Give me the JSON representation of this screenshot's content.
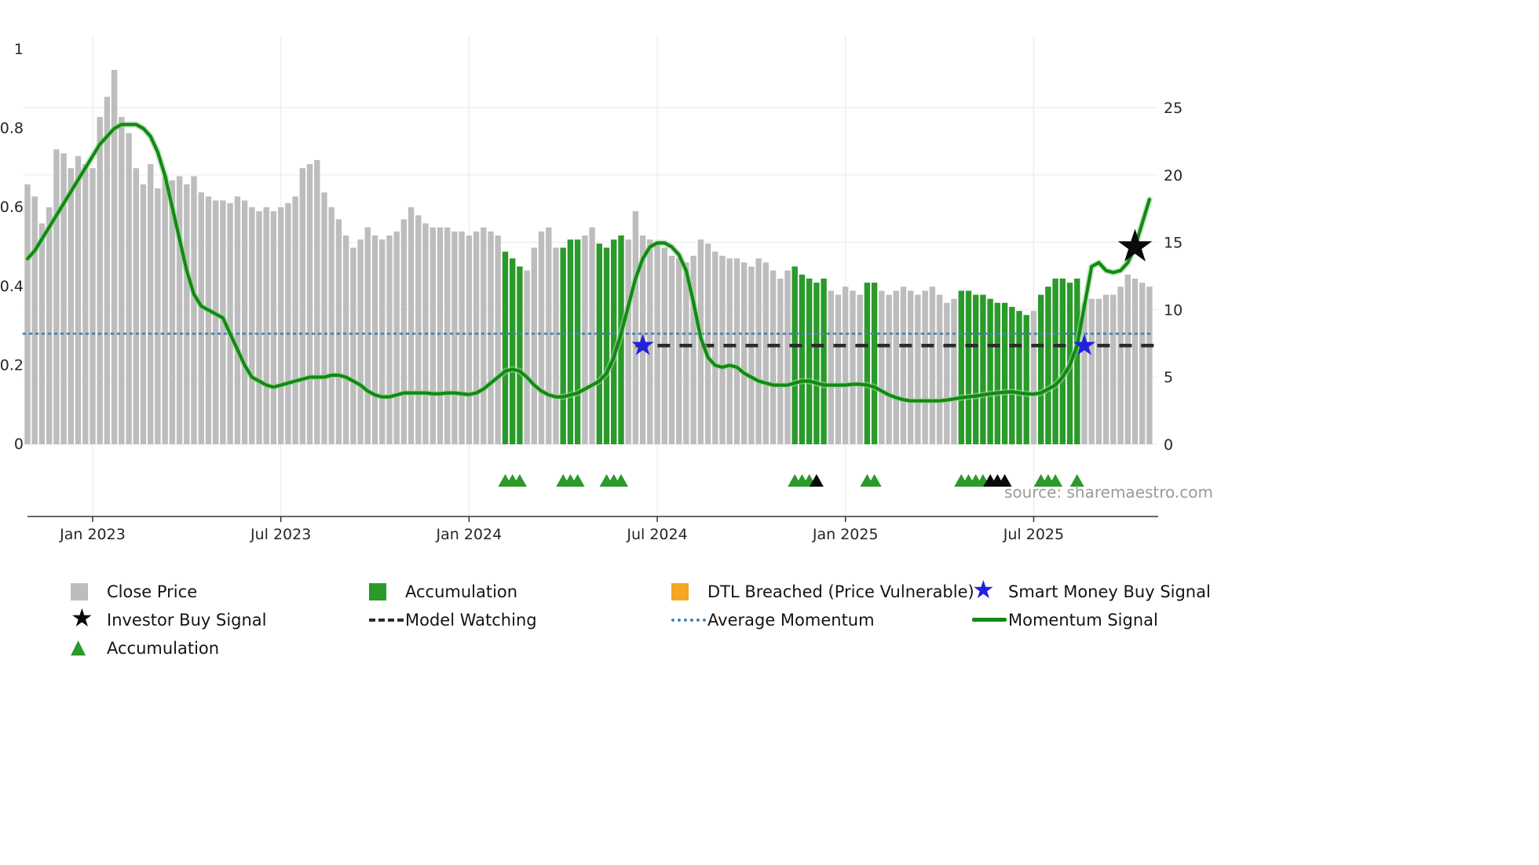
{
  "source_text": "source: sharemaestro.com",
  "icons": {
    "star": "★",
    "triangle": "▲"
  },
  "colors": {
    "close_price_gray": "#bdbdbd",
    "accumulation_green": "#2a9a2a",
    "momentum_green": "#128a12",
    "momentum_halo": "#9fd49f",
    "average_momentum_blue": "#4682B4",
    "model_watching_black": "#2b2b2b",
    "smart_money_blue": "#2121dd",
    "investor_black": "#0a0a0a",
    "dtl_orange": "#F5A623",
    "grid": "#ececec",
    "axis_line": "#333333"
  },
  "legend": {
    "items": [
      {
        "label": "Close Price",
        "swatch": "gray-square"
      },
      {
        "label": "Accumulation",
        "swatch": "green-square"
      },
      {
        "label": "DTL Breached (Price Vulnerable)",
        "swatch": "orange-square"
      },
      {
        "label": "Smart Money Buy Signal",
        "swatch": "blue-star"
      },
      {
        "label": "Investor Buy Signal",
        "swatch": "black-star"
      },
      {
        "label": "Model Watching",
        "swatch": "black-dashed-line"
      },
      {
        "label": "Average Momentum",
        "swatch": "blue-dotted-line"
      },
      {
        "label": "Momentum Signal",
        "swatch": "green-line"
      },
      {
        "label": "Accumulation",
        "swatch": "green-triangle"
      }
    ]
  },
  "chart_data": {
    "type": "combo_bar_line",
    "title": "",
    "left_axis": {
      "label": "",
      "ticks": [
        0,
        0.2,
        0.4,
        0.6,
        0.8,
        1
      ],
      "range": [
        0,
        1.05
      ]
    },
    "right_axis": {
      "label": "",
      "ticks": [
        0,
        5,
        10,
        15,
        20,
        25
      ],
      "range": [
        0,
        28
      ]
    },
    "x_ticks": [
      {
        "label": "Jan 2023",
        "index": 9
      },
      {
        "label": "Jul 2023",
        "index": 35
      },
      {
        "label": "Jan 2024",
        "index": 61
      },
      {
        "label": "Jul 2024",
        "index": 87
      },
      {
        "label": "Jan 2025",
        "index": 113
      },
      {
        "label": "Jul 2025",
        "index": 139
      }
    ],
    "bars": {
      "name": "Close Price",
      "axis": "right",
      "values": [
        19.3,
        18.4,
        16.4,
        17.6,
        21.9,
        21.6,
        20.5,
        21.4,
        20.8,
        20.5,
        24.3,
        25.8,
        27.8,
        24.3,
        23.1,
        20.5,
        19.3,
        20.8,
        19.0,
        19.9,
        19.6,
        19.9,
        19.3,
        19.9,
        18.7,
        18.4,
        18.1,
        18.1,
        17.9,
        18.4,
        18.1,
        17.6,
        17.3,
        17.6,
        17.3,
        17.6,
        17.9,
        18.4,
        20.5,
        20.8,
        21.1,
        18.7,
        17.6,
        16.7,
        15.5,
        14.6,
        15.2,
        16.1,
        15.5,
        15.2,
        15.5,
        15.8,
        16.7,
        17.6,
        17.0,
        16.4,
        16.1,
        16.1,
        16.1,
        15.8,
        15.8,
        15.5,
        15.8,
        16.1,
        15.8,
        15.5,
        14.3,
        13.8,
        13.2,
        12.9,
        14.6,
        15.8,
        16.1,
        14.6,
        14.6,
        15.2,
        15.2,
        15.5,
        16.1,
        14.9,
        14.6,
        15.2,
        15.5,
        15.2,
        17.3,
        15.5,
        15.2,
        14.9,
        14.6,
        14.0,
        13.8,
        13.5,
        14.0,
        15.2,
        14.9,
        14.3,
        14.0,
        13.8,
        13.8,
        13.5,
        13.2,
        13.8,
        13.5,
        12.9,
        12.3,
        12.9,
        13.2,
        12.6,
        12.3,
        12.0,
        12.3,
        11.4,
        11.1,
        11.7,
        11.4,
        11.1,
        12.0,
        12.0,
        11.4,
        11.1,
        11.4,
        11.7,
        11.4,
        11.1,
        11.4,
        11.7,
        11.1,
        10.5,
        10.8,
        11.4,
        11.4,
        11.1,
        11.1,
        10.8,
        10.5,
        10.5,
        10.2,
        9.9,
        9.6,
        9.9,
        11.1,
        11.7,
        12.3,
        12.3,
        12.0,
        12.3,
        10.5,
        10.8,
        10.8,
        11.1,
        11.1,
        11.7,
        12.6,
        12.3,
        12.0,
        11.7
      ],
      "accumulation_indices": [
        66,
        67,
        68,
        74,
        75,
        76,
        79,
        80,
        81,
        82,
        106,
        107,
        108,
        109,
        110,
        116,
        117,
        129,
        130,
        131,
        132,
        133,
        134,
        135,
        136,
        137,
        138,
        140,
        141,
        142,
        143,
        144,
        145
      ]
    },
    "momentum": {
      "name": "Momentum Signal",
      "axis": "left",
      "values": [
        0.47,
        0.49,
        0.52,
        0.55,
        0.58,
        0.61,
        0.64,
        0.67,
        0.7,
        0.73,
        0.76,
        0.78,
        0.8,
        0.81,
        0.81,
        0.81,
        0.8,
        0.78,
        0.74,
        0.68,
        0.6,
        0.52,
        0.44,
        0.38,
        0.35,
        0.34,
        0.33,
        0.32,
        0.28,
        0.24,
        0.2,
        0.17,
        0.16,
        0.15,
        0.145,
        0.15,
        0.155,
        0.16,
        0.165,
        0.17,
        0.17,
        0.17,
        0.175,
        0.175,
        0.17,
        0.16,
        0.15,
        0.135,
        0.125,
        0.12,
        0.12,
        0.125,
        0.13,
        0.13,
        0.13,
        0.13,
        0.128,
        0.128,
        0.13,
        0.13,
        0.128,
        0.126,
        0.13,
        0.14,
        0.155,
        0.17,
        0.185,
        0.19,
        0.185,
        0.17,
        0.15,
        0.135,
        0.125,
        0.12,
        0.12,
        0.125,
        0.13,
        0.14,
        0.15,
        0.16,
        0.18,
        0.22,
        0.28,
        0.35,
        0.42,
        0.47,
        0.5,
        0.51,
        0.51,
        0.5,
        0.48,
        0.44,
        0.36,
        0.27,
        0.22,
        0.2,
        0.195,
        0.2,
        0.195,
        0.18,
        0.17,
        0.16,
        0.155,
        0.15,
        0.15,
        0.15,
        0.155,
        0.16,
        0.16,
        0.155,
        0.15,
        0.15,
        0.15,
        0.15,
        0.152,
        0.152,
        0.15,
        0.145,
        0.135,
        0.125,
        0.118,
        0.113,
        0.11,
        0.11,
        0.11,
        0.11,
        0.11,
        0.112,
        0.115,
        0.118,
        0.12,
        0.122,
        0.125,
        0.128,
        0.13,
        0.132,
        0.133,
        0.13,
        0.128,
        0.127,
        0.13,
        0.14,
        0.15,
        0.17,
        0.2,
        0.25,
        0.35,
        0.45,
        0.46,
        0.44,
        0.435,
        0.44,
        0.46,
        0.5,
        0.56,
        0.62
      ]
    },
    "average_momentum": {
      "name": "Average Momentum",
      "axis": "left",
      "value": 0.28
    },
    "model_watching": {
      "name": "Model Watching",
      "axis": "left",
      "value": 0.25,
      "start_index": 84
    },
    "smart_money_buy_signals": [
      {
        "index": 85,
        "value": 0.25
      },
      {
        "index": 146,
        "value": 0.25
      }
    ],
    "investor_buy_signal": {
      "index": 153,
      "value": 0.5
    },
    "accumulation_markers": [
      {
        "index": 66,
        "color": "green"
      },
      {
        "index": 67,
        "color": "green"
      },
      {
        "index": 68,
        "color": "green"
      },
      {
        "index": 74,
        "color": "green"
      },
      {
        "index": 75,
        "color": "green"
      },
      {
        "index": 76,
        "color": "green"
      },
      {
        "index": 80,
        "color": "green"
      },
      {
        "index": 81,
        "color": "green"
      },
      {
        "index": 82,
        "color": "green"
      },
      {
        "index": 106,
        "color": "green"
      },
      {
        "index": 107,
        "color": "green"
      },
      {
        "index": 108,
        "color": "green"
      },
      {
        "index": 109,
        "color": "black"
      },
      {
        "index": 116,
        "color": "green"
      },
      {
        "index": 117,
        "color": "green"
      },
      {
        "index": 129,
        "color": "green"
      },
      {
        "index": 130,
        "color": "green"
      },
      {
        "index": 131,
        "color": "green"
      },
      {
        "index": 132,
        "color": "green"
      },
      {
        "index": 133,
        "color": "black"
      },
      {
        "index": 134,
        "color": "black"
      },
      {
        "index": 135,
        "color": "black"
      },
      {
        "index": 140,
        "color": "green"
      },
      {
        "index": 141,
        "color": "green"
      },
      {
        "index": 142,
        "color": "green"
      },
      {
        "index": 145,
        "color": "green"
      }
    ]
  }
}
